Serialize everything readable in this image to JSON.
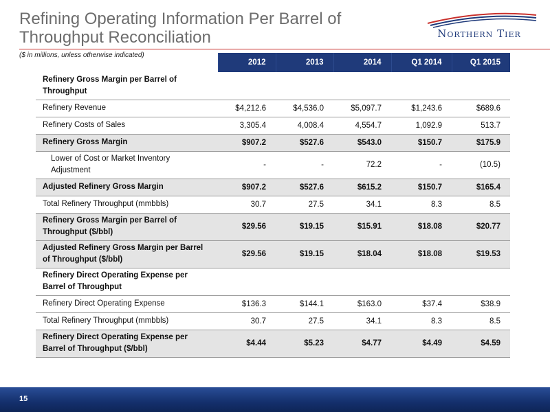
{
  "header": {
    "title_line1": "Refining Operating Information Per Barrel of",
    "title_line2": "Throughput Reconciliation",
    "subtitle": "($ in millions, unless otherwise indicated)",
    "logo_text": "Northern Tier"
  },
  "table": {
    "columns": [
      "2012",
      "2013",
      "2014",
      "Q1 2014",
      "Q1 2015"
    ],
    "rows": [
      {
        "label": "Refinery Gross Margin per Barrel of Throughput",
        "values": [
          "",
          "",
          "",
          "",
          ""
        ]
      },
      {
        "label": "Refinery Revenue",
        "values": [
          "$4,212.6",
          "$4,536.0",
          "$5,097.7",
          "$1,243.6",
          "$689.6"
        ]
      },
      {
        "label": "Refinery Costs of Sales",
        "values": [
          "3,305.4",
          "4,008.4",
          "4,554.7",
          "1,092.9",
          "513.7"
        ]
      },
      {
        "label": "Refinery Gross Margin",
        "values": [
          "$907.2",
          "$527.6",
          "$543.0",
          "$150.7",
          "$175.9"
        ]
      },
      {
        "label": "Lower of Cost or Market Inventory Adjustment",
        "values": [
          "-",
          "-",
          "72.2",
          "-",
          "(10.5)"
        ]
      },
      {
        "label": "Adjusted Refinery Gross Margin",
        "values": [
          "$907.2",
          "$527.6",
          "$615.2",
          "$150.7",
          "$165.4"
        ]
      },
      {
        "label": "Total Refinery Throughput (mmbbls)",
        "values": [
          "30.7",
          "27.5",
          "34.1",
          "8.3",
          "8.5"
        ]
      },
      {
        "label": "Refinery Gross Margin per Barrel of Throughput ($/bbl)",
        "values": [
          "$29.56",
          "$19.15",
          "$15.91",
          "$18.08",
          "$20.77"
        ]
      },
      {
        "label": "Adjusted Refinery Gross Margin per Barrel of Throughput ($/bbl)",
        "values": [
          "$29.56",
          "$19.15",
          "$18.04",
          "$18.08",
          "$19.53"
        ]
      },
      {
        "label": "Refinery Direct Operating Expense per Barrel of Throughput",
        "values": [
          "",
          "",
          "",
          "",
          ""
        ]
      },
      {
        "label": "Refinery Direct Operating Expense",
        "values": [
          "$136.3",
          "$144.1",
          "$163.0",
          "$37.4",
          "$38.9"
        ]
      },
      {
        "label": "Total Refinery Throughput (mmbbls)",
        "values": [
          "30.7",
          "27.5",
          "34.1",
          "8.3",
          "8.5"
        ]
      },
      {
        "label": "Refinery Direct Operating Expense per Barrel of Throughput ($/bbl)",
        "values": [
          "$4.44",
          "$5.23",
          "$4.77",
          "$4.49",
          "$4.59"
        ]
      }
    ]
  },
  "footer": {
    "page_number": "15"
  },
  "colors": {
    "header_blue": "#1f3a7a",
    "rule_red": "#c9302c",
    "shade_gray": "#e4e4e4"
  }
}
